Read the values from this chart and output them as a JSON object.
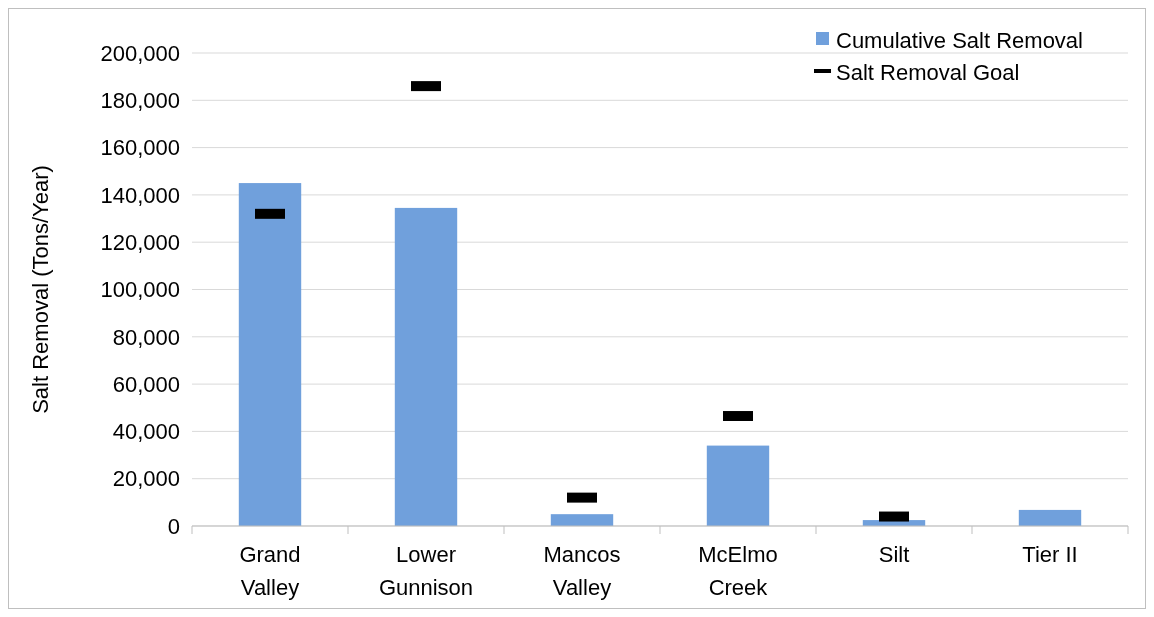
{
  "chart_data": {
    "type": "bar",
    "ylabel": "Salt Removal (Tons/Year)",
    "categories": [
      "Grand Valley",
      "Lower Gunnison",
      "Mancos Valley",
      "McElmo Creek",
      "Silt",
      "Tier II"
    ],
    "series": [
      {
        "name": "Cumulative Salt Removal",
        "color": "#70a0dc",
        "values": [
          145000,
          134500,
          5000,
          34000,
          2500,
          6800
        ]
      },
      {
        "name": "Salt Removal Goal",
        "type": "scatter",
        "color": "#000000",
        "x": [
          "Grand Valley",
          "Lower Gunnison",
          "Mancos Valley",
          "McElmo Creek",
          "Silt",
          "Tier II"
        ],
        "values": [
          132000,
          186000,
          12000,
          46500,
          4000,
          null
        ]
      }
    ],
    "ylim": [
      0,
      200000
    ],
    "yticks": [
      {
        "value": 0,
        "label": "0"
      },
      {
        "value": 20000,
        "label": "20,000"
      },
      {
        "value": 40000,
        "label": "40,000"
      },
      {
        "value": 60000,
        "label": "60,000"
      },
      {
        "value": 80000,
        "label": "80,000"
      },
      {
        "value": 100000,
        "label": "100,000"
      },
      {
        "value": 120000,
        "label": "120,000"
      },
      {
        "value": 140000,
        "label": "140,000"
      },
      {
        "value": 160000,
        "label": "160,000"
      },
      {
        "value": 180000,
        "label": "180,000"
      },
      {
        "value": 200000,
        "label": "200,000"
      }
    ],
    "grid": "y",
    "legend": "top right"
  }
}
